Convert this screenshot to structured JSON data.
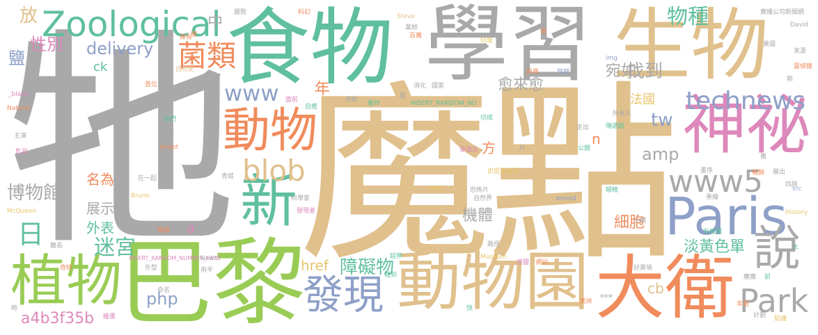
{
  "colors": {
    "gray": "#a9a9a9",
    "tan": "#e0c08c",
    "green": "#99cc55",
    "teal": "#5fbf9f",
    "blue": "#8ea0c8",
    "pink": "#dd88bb",
    "orange": "#f08b5c",
    "gold": "#e8c46a"
  },
  "words": [
    {
      "text": "牠",
      "color": "gray"
    },
    {
      "text": "魔",
      "color": "tan"
    },
    {
      "text": "點",
      "color": "tan"
    },
    {
      "text": "食物",
      "color": "teal"
    },
    {
      "text": "學習",
      "color": "gray"
    },
    {
      "text": "生物",
      "color": "tan"
    },
    {
      "text": "巴黎",
      "color": "green"
    },
    {
      "text": "動物園",
      "color": "tan"
    },
    {
      "text": "大衛",
      "color": "orange"
    },
    {
      "text": "植物",
      "color": "green"
    },
    {
      "text": "神祕",
      "color": "pink"
    },
    {
      "text": "Paris",
      "color": "blue"
    },
    {
      "text": "Zoological",
      "color": "teal"
    },
    {
      "text": "動物",
      "color": "orange"
    },
    {
      "text": "發現",
      "color": "blue"
    },
    {
      "text": "新",
      "color": "teal"
    },
    {
      "text": "說",
      "color": "gray"
    },
    {
      "text": "Park",
      "color": "gray"
    },
    {
      "text": "blob",
      "color": "tan"
    },
    {
      "text": "www5",
      "color": "gray"
    },
    {
      "text": "technews",
      "color": "blue"
    },
    {
      "text": "菌類",
      "color": "orange"
    },
    {
      "text": "www",
      "color": "blue"
    },
    {
      "text": "日",
      "color": "teal"
    },
    {
      "text": "物種",
      "color": "teal"
    },
    {
      "text": "障礙物",
      "color": "teal"
    },
    {
      "text": "迷宮",
      "color": "teal"
    },
    {
      "text": "博物館",
      "color": "gray"
    },
    {
      "text": "delivery",
      "color": "blue"
    },
    {
      "text": "找到",
      "color": "gray"
    },
    {
      "text": "宛如",
      "color": "gray"
    },
    {
      "text": "愈來愈",
      "color": "gray"
    },
    {
      "text": "amp",
      "color": "gray"
    },
    {
      "text": "機體",
      "color": "gray"
    },
    {
      "text": "細胞",
      "color": "orange"
    },
    {
      "text": "淡黃色單",
      "color": "teal"
    },
    {
      "text": "a4b3f35b",
      "color": "pink"
    },
    {
      "text": "php",
      "color": "blue"
    },
    {
      "text": "href",
      "color": "gold"
    },
    {
      "text": "性別",
      "color": "pink"
    },
    {
      "text": "鹽",
      "color": "blue"
    },
    {
      "text": "放",
      "color": "tan"
    },
    {
      "text": "中",
      "color": "gray"
    },
    {
      "text": "ck",
      "color": "teal"
    },
    {
      "text": "年",
      "color": "orange"
    },
    {
      "text": "tw",
      "color": "blue"
    },
    {
      "text": "法國",
      "color": "gold"
    },
    {
      "text": "名為",
      "color": "orange"
    },
    {
      "text": "展示",
      "color": "gray"
    },
    {
      "text": "外表",
      "color": "teal"
    },
    {
      "text": "cb",
      "color": "tan"
    },
    {
      "text": "方",
      "color": "orange"
    },
    {
      "text": "n",
      "color": "orange"
    },
    {
      "text": "a",
      "color": "pink"
    },
    {
      "text": "Steve",
      "color": "tan"
    },
    {
      "text": "廣播公司新聞網",
      "color": "gray"
    },
    {
      "text": "David",
      "color": "gray"
    },
    {
      "text": "INSERT_RANDOM_NU",
      "color": "teal"
    },
    {
      "text": "INSERT_RANDOM_NUMBER_HERE",
      "color": "pink"
    },
    {
      "text": "_blank",
      "color": "pink"
    },
    {
      "text": "Natural",
      "color": "orange"
    },
    {
      "text": "McQueen",
      "color": "gold"
    },
    {
      "text": "target",
      "color": "orange"
    },
    {
      "text": "Museum",
      "color": "gold"
    },
    {
      "text": "zoneid",
      "color": "blue"
    },
    {
      "text": "History",
      "color": "gold"
    },
    {
      "text": "ABC",
      "color": "gold"
    },
    {
      "text": "Bruno",
      "color": "gold"
    },
    {
      "text": "News",
      "color": "gray"
    },
    {
      "text": "img",
      "color": "blue"
    },
    {
      "text": "src",
      "color": "blue"
    },
    {
      "text": "aww",
      "color": "gray"
    },
    {
      "text": "主演",
      "color": "gray"
    },
    {
      "text": "影星",
      "color": "pink"
    },
    {
      "text": "首位",
      "color": "orange"
    },
    {
      "text": "自然史",
      "color": "tan"
    },
    {
      "text": "他們",
      "color": "teal"
    },
    {
      "text": "分離",
      "color": "gray"
    },
    {
      "text": "在一起",
      "color": "gray"
    },
    {
      "text": "青蛙",
      "color": "gray"
    },
    {
      "text": "科學家",
      "color": "gray"
    },
    {
      "text": "自然界",
      "color": "gray"
    },
    {
      "text": "恐怖片",
      "color": "gray"
    },
    {
      "text": "史提夫麥昆",
      "color": "gold"
    },
    {
      "text": "穿越",
      "color": "blue"
    },
    {
      "text": "辭典",
      "color": "orange"
    },
    {
      "text": "印度",
      "color": "gold"
    },
    {
      "text": "美國",
      "color": "gray"
    },
    {
      "text": "來源",
      "color": "gray"
    },
    {
      "text": "靈偵錄",
      "color": "orange"
    },
    {
      "text": "所有人",
      "color": "gray"
    },
    {
      "text": "傳遞給",
      "color": "teal"
    },
    {
      "text": "公開",
      "color": "teal"
    },
    {
      "text": "走出",
      "color": "gray"
    },
    {
      "text": "暢銷",
      "color": "orange"
    },
    {
      "text": "畫序",
      "color": "gray"
    },
    {
      "text": "展出",
      "color": "gray"
    },
    {
      "text": "四肢",
      "color": "gray"
    },
    {
      "text": "有機體",
      "color": "teal"
    },
    {
      "text": "澳洲",
      "color": "orange"
    },
    {
      "text": "年輕",
      "color": "orange"
    },
    {
      "text": "知識",
      "color": "gold"
    },
    {
      "text": "計劃",
      "color": "gray"
    },
    {
      "text": "好萊塢",
      "color": "gray"
    },
    {
      "text": "首圖",
      "color": "pink"
    },
    {
      "text": "網站",
      "color": "orange"
    },
    {
      "text": "路徑",
      "color": "gray"
    },
    {
      "text": "延伸",
      "color": "teal"
    },
    {
      "text": "碰到",
      "color": "teal"
    },
    {
      "text": "外型",
      "color": "gray"
    },
    {
      "text": "命名",
      "color": "gray"
    },
    {
      "text": "雨半",
      "color": "gray"
    },
    {
      "text": "繪畫",
      "color": "pink"
    },
    {
      "text": "奇特",
      "color": "orange"
    },
    {
      "text": "難長",
      "color": "gray"
    },
    {
      "text": "閱讀",
      "color": "orange"
    },
    {
      "text": "發現者",
      "color": "pink"
    },
    {
      "text": "國家",
      "color": "gray"
    },
    {
      "text": "消化",
      "color": "gray"
    },
    {
      "text": "切成",
      "color": "teal"
    },
    {
      "text": "帶動",
      "color": "gray"
    },
    {
      "text": "面前",
      "color": "pink"
    },
    {
      "text": "自癒",
      "color": "teal"
    },
    {
      "text": "擁有",
      "color": "orange"
    },
    {
      "text": "科幻",
      "color": "orange"
    },
    {
      "text": "趨勢",
      "color": "gray"
    },
    {
      "text": "業餘",
      "color": "gray"
    },
    {
      "text": "百萬",
      "color": "orange"
    },
    {
      "text": "使",
      "color": "orange"
    },
    {
      "text": "窮",
      "color": "gray"
    },
    {
      "text": "鱷",
      "color": "orange"
    },
    {
      "text": "穿過去",
      "color": "pink"
    },
    {
      "text": "片",
      "color": "gray"
    },
    {
      "text": "重繪",
      "color": "gray"
    },
    {
      "text": "小鎮",
      "color": "gray"
    },
    {
      "text": "眼睛",
      "color": "teal"
    },
    {
      "text": "魔魔",
      "color": "gray"
    },
    {
      "text": "萬",
      "color": "gray"
    },
    {
      "text": "前",
      "color": "teal"
    },
    {
      "text": "時",
      "color": "gray"
    },
    {
      "text": "快",
      "color": "teal"
    },
    {
      "text": "屋",
      "color": "gray"
    },
    {
      "text": "雷州",
      "color": "teal"
    },
    {
      "text": "太",
      "color": "teal"
    }
  ]
}
